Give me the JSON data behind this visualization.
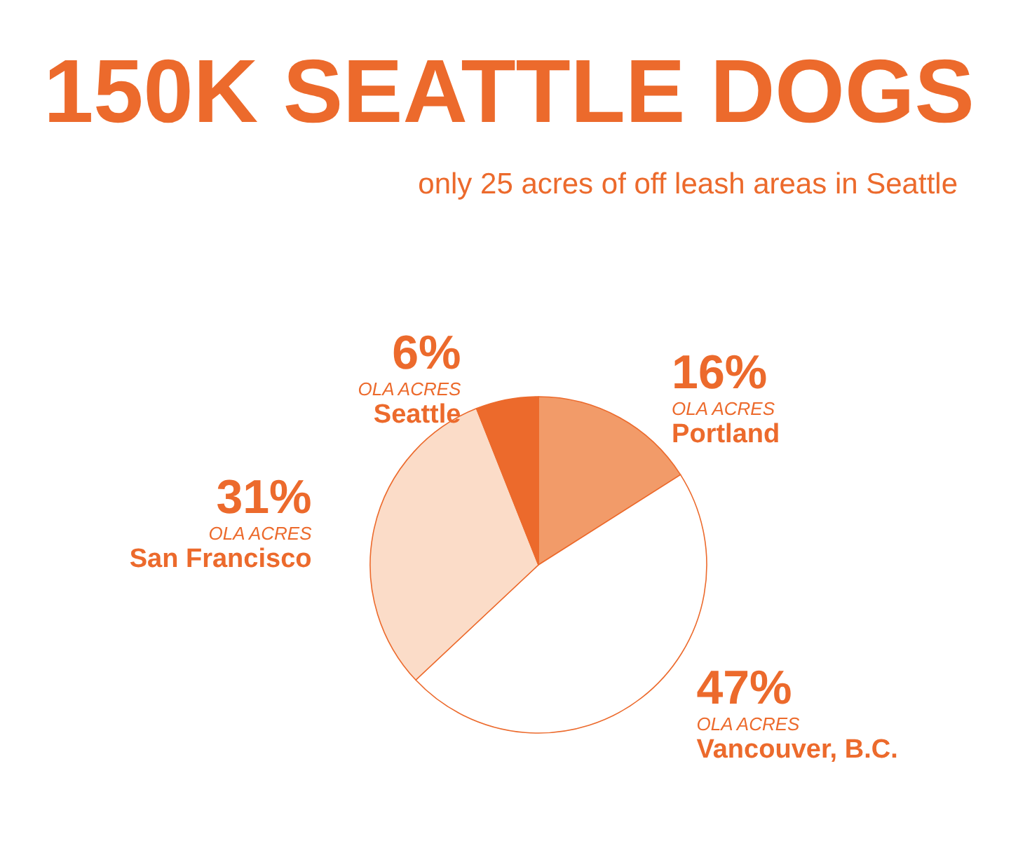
{
  "chart_data": {
    "type": "pie",
    "title": "150K SEATTLE DOGS",
    "subtitle": "only 25 acres of off leash areas in Seattle",
    "categories": [
      "Portland",
      "Vancouver, B.C.",
      "San Francisco",
      "Seattle"
    ],
    "values": [
      16,
      47,
      31,
      6
    ],
    "colors": [
      "#f29b69",
      "#ffffff",
      "#fbdcc8",
      "#ec6a2c"
    ],
    "value_labels": [
      "16%",
      "47%",
      "31%",
      "6%"
    ],
    "annotations": [
      "OLA ACRES",
      "OLA ACRES",
      "OLA ACRES",
      "OLA ACRES"
    ],
    "legend": false
  }
}
